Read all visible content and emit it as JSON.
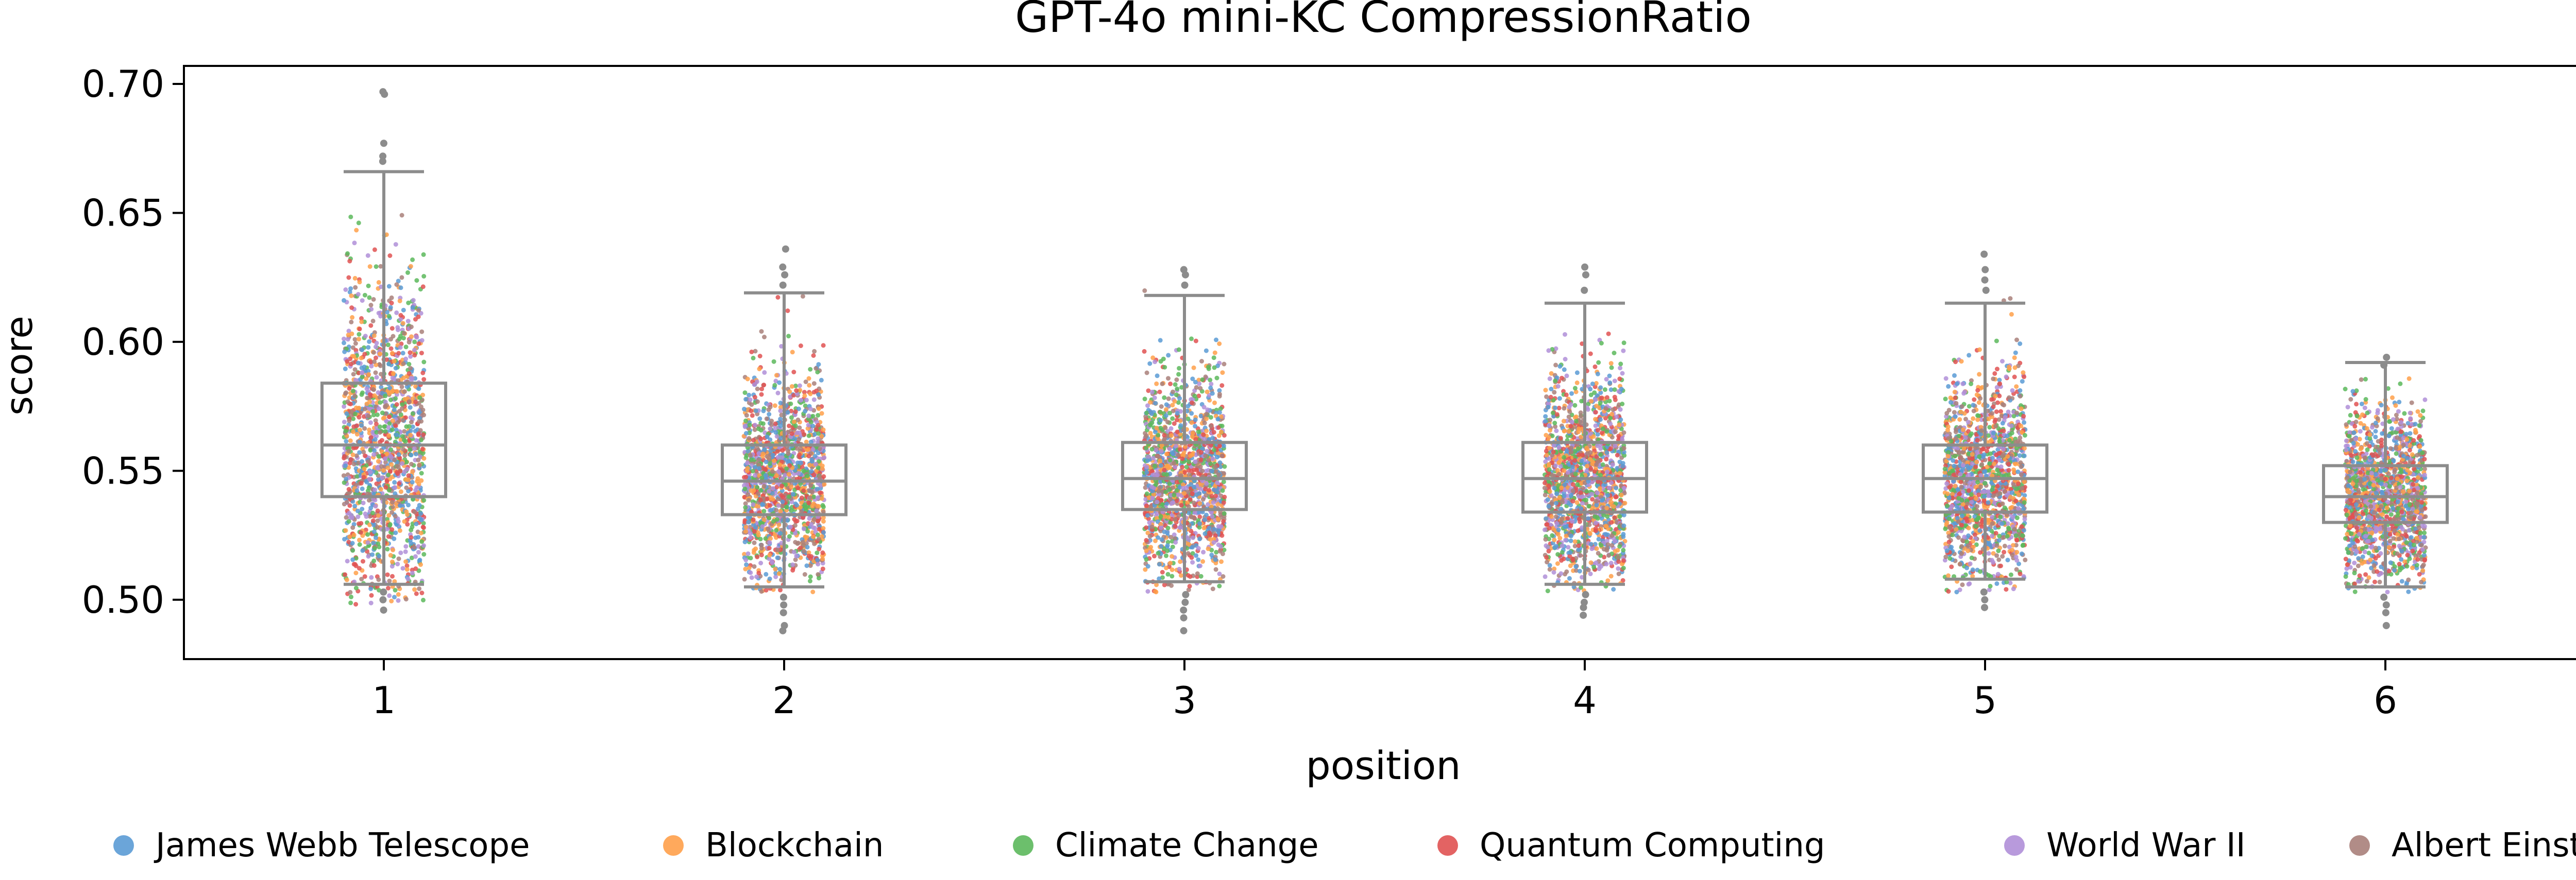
{
  "chart_data": {
    "type": "box+strip",
    "title": "GPT-4o mini-KC CompressionRatio",
    "xlabel": "position",
    "ylabel": "score",
    "ylim": [
      0.477,
      0.707
    ],
    "yticks": [
      0.5,
      0.55,
      0.6,
      0.65,
      0.7
    ],
    "ytick_labels": [
      "0.50",
      "0.55",
      "0.60",
      "0.65",
      "0.70"
    ],
    "categories": [
      "1",
      "2",
      "3",
      "4",
      "5",
      "6"
    ],
    "boxes": [
      {
        "position": "1",
        "whisker_low": 0.506,
        "q1": 0.54,
        "median": 0.56,
        "q3": 0.584,
        "whisker_high": 0.666,
        "outliers": [
          0.697,
          0.696,
          0.677,
          0.672,
          0.67,
          0.503,
          0.5,
          0.496
        ]
      },
      {
        "position": "2",
        "whisker_low": 0.505,
        "q1": 0.533,
        "median": 0.546,
        "q3": 0.56,
        "whisker_high": 0.619,
        "outliers": [
          0.636,
          0.629,
          0.626,
          0.622,
          0.501,
          0.498,
          0.495,
          0.49,
          0.488
        ]
      },
      {
        "position": "3",
        "whisker_low": 0.507,
        "q1": 0.535,
        "median": 0.547,
        "q3": 0.561,
        "whisker_high": 0.618,
        "outliers": [
          0.628,
          0.626,
          0.622,
          0.502,
          0.499,
          0.496,
          0.493,
          0.488
        ]
      },
      {
        "position": "4",
        "whisker_low": 0.506,
        "q1": 0.534,
        "median": 0.547,
        "q3": 0.561,
        "whisker_high": 0.615,
        "outliers": [
          0.629,
          0.626,
          0.62,
          0.502,
          0.499,
          0.497,
          0.494
        ]
      },
      {
        "position": "5",
        "whisker_low": 0.508,
        "q1": 0.534,
        "median": 0.547,
        "q3": 0.56,
        "whisker_high": 0.615,
        "outliers": [
          0.634,
          0.628,
          0.624,
          0.62,
          0.503,
          0.5,
          0.497
        ]
      },
      {
        "position": "6",
        "whisker_low": 0.505,
        "q1": 0.53,
        "median": 0.54,
        "q3": 0.552,
        "whisker_high": 0.592,
        "outliers": [
          0.594,
          0.591,
          0.501,
          0.498,
          0.495,
          0.49
        ]
      }
    ],
    "strip_spread": {
      "1": [
        0.498,
        0.668
      ],
      "2": [
        0.503,
        0.622
      ],
      "3": [
        0.503,
        0.622
      ],
      "4": [
        0.503,
        0.62
      ],
      "5": [
        0.503,
        0.617
      ],
      "6": [
        0.503,
        0.592
      ]
    },
    "series": [
      {
        "name": "James Webb Telescope",
        "color": "#5b9bd5"
      },
      {
        "name": "Blockchain",
        "color": "#ffa04a"
      },
      {
        "name": "Climate Change",
        "color": "#5cb85c"
      },
      {
        "name": "Quantum Computing",
        "color": "#e05252"
      },
      {
        "name": "World War II",
        "color": "#b08fd8"
      },
      {
        "name": "Albert Einstein",
        "color": "#a9807a"
      }
    ],
    "legend_position": "bottom",
    "grid": false
  }
}
